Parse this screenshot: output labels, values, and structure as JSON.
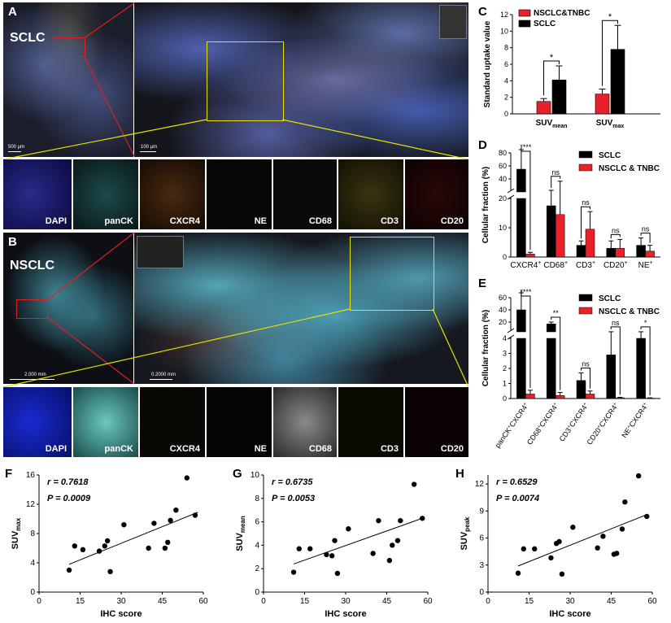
{
  "panels": {
    "A": {
      "letter": "A",
      "title": "SCLC",
      "scale_left": "500 µm",
      "scale_right": "100 µm",
      "channels": [
        "DAPI",
        "panCK",
        "CXCR4",
        "NE",
        "CD68",
        "CD3",
        "CD20"
      ]
    },
    "B": {
      "letter": "B",
      "title": "NSCLC",
      "scale_left": "2.000 mm",
      "scale_right": "0.2000 mm",
      "channels": [
        "DAPI",
        "panCK",
        "CXCR4",
        "NE",
        "CD68",
        "CD3",
        "CD20"
      ]
    },
    "C": {
      "letter": "C"
    },
    "D": {
      "letter": "D"
    },
    "E": {
      "letter": "E"
    },
    "F": {
      "letter": "F"
    },
    "G": {
      "letter": "G"
    },
    "H": {
      "letter": "H"
    }
  },
  "colors": {
    "sclc": "#000000",
    "nsclc": "#e8202a",
    "zoom_box_a": "#e8e000",
    "zoom_box_red": "#e02020"
  },
  "chart_data": [
    {
      "id": "C",
      "type": "bar",
      "ylabel": "Standard uptake value",
      "ylim": [
        0,
        12
      ],
      "yticks": [
        0,
        2,
        4,
        6,
        8,
        10,
        12
      ],
      "categories": [
        {
          "main": "SUV",
          "sub": "mean"
        },
        {
          "main": "SUV",
          "sub": "max"
        }
      ],
      "series": [
        {
          "name": "NSCLC&TNBC",
          "color": "#e8202a",
          "values": [
            1.5,
            2.4
          ],
          "err": [
            0.35,
            0.6
          ]
        },
        {
          "name": "SCLC",
          "color": "#000000",
          "values": [
            4.1,
            7.8
          ],
          "err": [
            1.7,
            2.9
          ]
        }
      ],
      "significance": [
        {
          "label": "*"
        },
        {
          "label": "*"
        }
      ],
      "legend": "top-left"
    },
    {
      "id": "D",
      "type": "bar",
      "ylabel": "Cellular fraction (%)",
      "broken_axis": {
        "lower": [
          0,
          20
        ],
        "upper": [
          20,
          80
        ]
      },
      "yticks": [
        0,
        10,
        20,
        40,
        60,
        80
      ],
      "categories": [
        {
          "main": "CXCR4",
          "sup": "+"
        },
        {
          "main": "CD68",
          "sup": "+"
        },
        {
          "main": "CD3",
          "sup": "+"
        },
        {
          "main": "CD20",
          "sup": "+"
        },
        {
          "main": "NE",
          "sup": "+"
        }
      ],
      "series": [
        {
          "name": "SCLC",
          "color": "#000000",
          "values": [
            55,
            17.5,
            4,
            3,
            4
          ],
          "err": [
            30,
            5,
            1.5,
            2.5,
            2.5
          ]
        },
        {
          "name": "NSCLC & TNBC",
          "color": "#e8202a",
          "values": [
            1,
            14.5,
            9.5,
            3,
            2
          ],
          "err": [
            0.6,
            22,
            6,
            3,
            2
          ]
        }
      ],
      "significance": [
        {
          "label": "****"
        },
        {
          "label": "ns"
        },
        {
          "label": "ns"
        },
        {
          "label": "ns"
        },
        {
          "label": "ns"
        }
      ],
      "legend": "top-right"
    },
    {
      "id": "E",
      "type": "bar",
      "ylabel": "Cellular fraction (%)",
      "broken_axis": {
        "lower": [
          0,
          4
        ],
        "upper": [
          4,
          60
        ]
      },
      "yticks": [
        0,
        1,
        2,
        3,
        4,
        20,
        40,
        60
      ],
      "categories": [
        {
          "a": "panCK",
          "b": "CXCR4"
        },
        {
          "a": "CD68",
          "b": "CXCR4"
        },
        {
          "a": "CD3",
          "b": "CXCR4"
        },
        {
          "a": "CD20",
          "b": "CXCR4"
        },
        {
          "a": "NE",
          "b": "CXCR4"
        }
      ],
      "series": [
        {
          "name": "SCLC",
          "color": "#000000",
          "values": [
            40,
            17,
            1.2,
            2.9,
            4.0
          ],
          "err": [
            28,
            3,
            0.5,
            1.2,
            0.1
          ]
        },
        {
          "name": "NSCLC & TNBC",
          "color": "#e8202a",
          "values": [
            0.3,
            0.2,
            0.3,
            0.05,
            0.03
          ],
          "err": [
            0.25,
            0.2,
            0.2,
            0.03,
            0.02
          ]
        }
      ],
      "significance": [
        {
          "label": "****"
        },
        {
          "label": "**"
        },
        {
          "label": "ns"
        },
        {
          "label": "ns"
        },
        {
          "label": "*"
        }
      ],
      "legend": "top-right"
    },
    {
      "id": "F",
      "type": "scatter",
      "xlabel": "IHC score",
      "ylabel": {
        "main": "SUV",
        "sub": "max"
      },
      "xlim": [
        0,
        60
      ],
      "xticks": [
        0,
        15,
        30,
        45,
        60
      ],
      "ylim": [
        0,
        16
      ],
      "yticks": [
        0,
        4,
        8,
        12,
        16
      ],
      "stats": {
        "r": "r = 0.7618",
        "p": "P = 0.0009"
      },
      "points": [
        [
          11,
          3.0
        ],
        [
          13,
          6.3
        ],
        [
          16,
          5.8
        ],
        [
          22,
          5.6
        ],
        [
          24,
          6.3
        ],
        [
          25,
          7.0
        ],
        [
          26,
          2.8
        ],
        [
          31,
          9.2
        ],
        [
          40,
          6.0
        ],
        [
          42,
          9.4
        ],
        [
          46,
          6.0
        ],
        [
          47,
          6.8
        ],
        [
          48,
          9.8
        ],
        [
          50,
          11.2
        ],
        [
          54,
          15.6
        ],
        [
          57,
          10.5
        ]
      ],
      "fit": [
        [
          11,
          3.8
        ],
        [
          58,
          10.9
        ]
      ]
    },
    {
      "id": "G",
      "type": "scatter",
      "xlabel": "IHC score",
      "ylabel": {
        "main": "SUV",
        "sub": "mean"
      },
      "xlim": [
        0,
        60
      ],
      "xticks": [
        0,
        15,
        30,
        45,
        60
      ],
      "ylim": [
        0,
        10
      ],
      "yticks": [
        0,
        2,
        4,
        6,
        8,
        10
      ],
      "stats": {
        "r": "r = 0.6735",
        "p": "P = 0.0053"
      },
      "points": [
        [
          11,
          1.7
        ],
        [
          13,
          3.7
        ],
        [
          17,
          3.7
        ],
        [
          23,
          3.2
        ],
        [
          25,
          3.1
        ],
        [
          26,
          4.4
        ],
        [
          27,
          1.6
        ],
        [
          31,
          5.4
        ],
        [
          40,
          3.3
        ],
        [
          42,
          6.1
        ],
        [
          46,
          2.7
        ],
        [
          47,
          4.0
        ],
        [
          49,
          4.4
        ],
        [
          50,
          6.1
        ],
        [
          55,
          9.2
        ],
        [
          58,
          6.3
        ]
      ],
      "fit": [
        [
          11,
          2.4
        ],
        [
          58,
          6.3
        ]
      ]
    },
    {
      "id": "H",
      "type": "scatter",
      "xlabel": "IHC score",
      "ylabel": {
        "main": "SUV",
        "sub": "peak"
      },
      "xlim": [
        0,
        60
      ],
      "xticks": [
        0,
        15,
        30,
        45,
        60
      ],
      "ylim": [
        0,
        13
      ],
      "yticks": [
        0,
        3,
        6,
        9,
        12
      ],
      "stats": {
        "r": "r = 0.6529",
        "p": "P = 0.0074"
      },
      "points": [
        [
          11,
          2.1
        ],
        [
          13,
          4.8
        ],
        [
          17,
          4.8
        ],
        [
          23,
          3.8
        ],
        [
          25,
          5.4
        ],
        [
          26,
          5.6
        ],
        [
          27,
          2.0
        ],
        [
          31,
          7.2
        ],
        [
          40,
          4.9
        ],
        [
          42,
          6.2
        ],
        [
          46,
          4.2
        ],
        [
          47,
          4.3
        ],
        [
          49,
          7.0
        ],
        [
          50,
          10.0
        ],
        [
          55,
          12.9
        ],
        [
          58,
          8.4
        ]
      ],
      "fit": [
        [
          11,
          2.9
        ],
        [
          58,
          8.6
        ]
      ]
    }
  ]
}
